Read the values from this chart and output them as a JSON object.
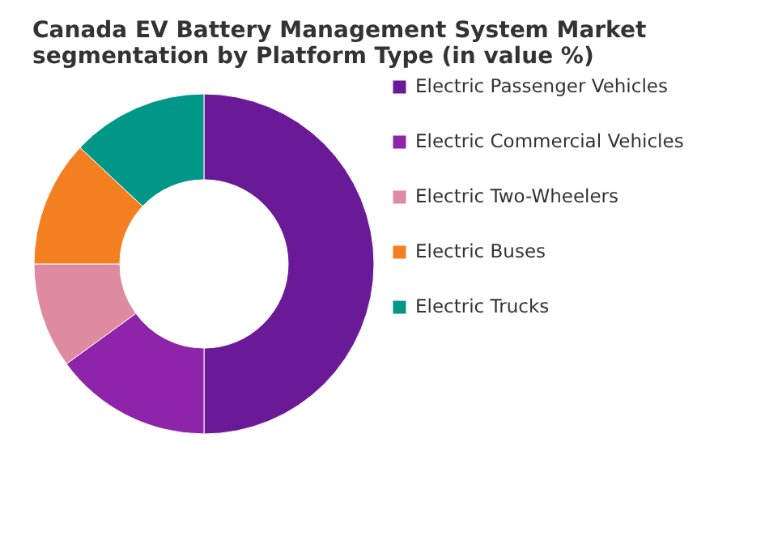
{
  "chart_data": {
    "type": "donut",
    "title": "Canada EV Battery Management System Market segmentation by Platform Type (in value %)",
    "categories": [
      "Electric Passenger Vehicles",
      "Electric Commercial Vehicles",
      "Electric Two-Wheelers",
      "Electric Buses",
      "Electric Trucks"
    ],
    "values": [
      50,
      15,
      10,
      12,
      13
    ],
    "colors": [
      "#6a1a96",
      "#8e24aa",
      "#de8aa0",
      "#f47f20",
      "#009688"
    ],
    "legend": "right"
  }
}
